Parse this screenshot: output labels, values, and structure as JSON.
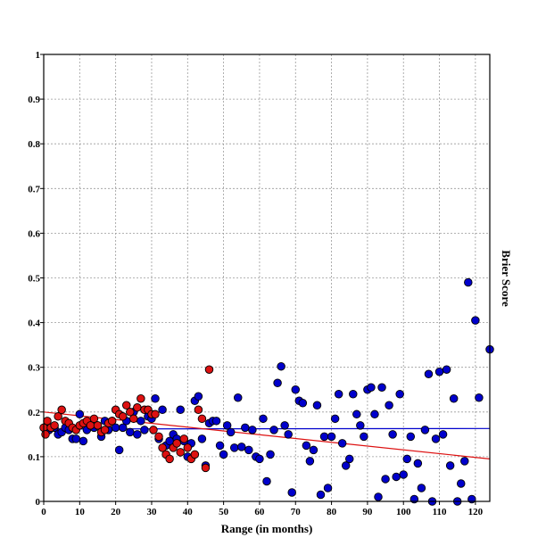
{
  "chart_data": {
    "type": "scatter",
    "title": "",
    "xlabel": "Range (in months)",
    "ylabel": "Brier Score",
    "xlim": [
      0,
      124
    ],
    "ylim": [
      0,
      1
    ],
    "x_ticks": [
      "0",
      "10",
      "20",
      "30",
      "40",
      "50",
      "60",
      "70",
      "80",
      "90",
      "100",
      "110",
      "120"
    ],
    "y_ticks": [
      "1",
      "0.9",
      "0.8",
      "0.7",
      "0.6",
      "0.5",
      "0.4",
      "0.3",
      "0.2",
      "0.1",
      "0"
    ],
    "grid": true,
    "series": [
      {
        "color": "#0000cc",
        "points": [
          [
            0.5,
            0.165
          ],
          [
            1.5,
            0.16
          ],
          [
            3,
            0.165
          ],
          [
            4,
            0.15
          ],
          [
            5,
            0.155
          ],
          [
            6,
            0.165
          ],
          [
            7,
            0.16
          ],
          [
            8,
            0.14
          ],
          [
            9,
            0.14
          ],
          [
            10,
            0.195
          ],
          [
            11,
            0.135
          ],
          [
            12,
            0.16
          ],
          [
            13,
            0.17
          ],
          [
            14,
            0.165
          ],
          [
            15,
            0.17
          ],
          [
            16,
            0.145
          ],
          [
            17,
            0.18
          ],
          [
            18,
            0.16
          ],
          [
            19,
            0.18
          ],
          [
            20,
            0.165
          ],
          [
            21,
            0.115
          ],
          [
            22,
            0.165
          ],
          [
            23,
            0.18
          ],
          [
            24,
            0.155
          ],
          [
            25,
            0.2
          ],
          [
            26,
            0.15
          ],
          [
            27,
            0.18
          ],
          [
            28,
            0.16
          ],
          [
            29,
            0.19
          ],
          [
            30,
            0.185
          ],
          [
            31,
            0.23
          ],
          [
            32,
            0.14
          ],
          [
            33,
            0.205
          ],
          [
            34,
            0.125
          ],
          [
            35,
            0.135
          ],
          [
            36,
            0.15
          ],
          [
            37,
            0.14
          ],
          [
            38,
            0.205
          ],
          [
            39,
            0.135
          ],
          [
            40,
            0.1
          ],
          [
            41,
            0.13
          ],
          [
            42,
            0.225
          ],
          [
            43,
            0.235
          ],
          [
            44,
            0.14
          ],
          [
            45,
            0.08
          ],
          [
            46,
            0.175
          ],
          [
            47,
            0.18
          ],
          [
            48,
            0.18
          ],
          [
            49,
            0.125
          ],
          [
            50,
            0.105
          ],
          [
            51,
            0.17
          ],
          [
            52,
            0.155
          ],
          [
            53,
            0.12
          ],
          [
            54,
            0.232
          ],
          [
            55,
            0.122
          ],
          [
            56,
            0.165
          ],
          [
            57,
            0.115
          ],
          [
            58,
            0.16
          ],
          [
            59,
            0.1
          ],
          [
            60,
            0.095
          ],
          [
            61,
            0.185
          ],
          [
            62,
            0.045
          ],
          [
            63,
            0.105
          ],
          [
            64,
            0.16
          ],
          [
            65,
            0.265
          ],
          [
            66,
            0.302
          ],
          [
            67,
            0.17
          ],
          [
            68,
            0.15
          ],
          [
            69,
            0.02
          ],
          [
            70,
            0.25
          ],
          [
            71,
            0.225
          ],
          [
            72,
            0.22
          ],
          [
            73,
            0.125
          ],
          [
            74,
            0.09
          ],
          [
            75,
            0.115
          ],
          [
            76,
            0.215
          ],
          [
            77,
            0.015
          ],
          [
            78,
            0.145
          ],
          [
            79,
            0.03
          ],
          [
            80,
            0.145
          ],
          [
            81,
            0.185
          ],
          [
            82,
            0.24
          ],
          [
            83,
            0.13
          ],
          [
            84,
            0.08
          ],
          [
            85,
            0.095
          ],
          [
            86,
            0.24
          ],
          [
            87,
            0.195
          ],
          [
            88,
            0.17
          ],
          [
            89,
            0.145
          ],
          [
            90,
            0.25
          ],
          [
            91,
            0.255
          ],
          [
            92,
            0.195
          ],
          [
            93,
            0.01
          ],
          [
            94,
            0.255
          ],
          [
            95,
            0.05
          ],
          [
            96,
            0.215
          ],
          [
            97,
            0.15
          ],
          [
            98,
            0.055
          ],
          [
            99,
            0.24
          ],
          [
            100,
            0.06
          ],
          [
            101,
            0.095
          ],
          [
            102,
            0.145
          ],
          [
            103,
            0.005
          ],
          [
            104,
            0.085
          ],
          [
            105,
            0.03
          ],
          [
            106,
            0.16
          ],
          [
            107,
            0.285
          ],
          [
            108,
            0.0
          ],
          [
            109,
            0.14
          ],
          [
            110,
            0.29
          ],
          [
            111,
            0.15
          ],
          [
            112,
            0.295
          ],
          [
            113,
            0.08
          ],
          [
            114,
            0.23
          ],
          [
            115,
            0.0
          ],
          [
            116,
            0.04
          ],
          [
            117,
            0.09
          ],
          [
            118,
            0.49
          ],
          [
            119,
            0.005
          ],
          [
            120,
            0.405
          ],
          [
            121,
            0.232
          ],
          [
            124,
            0.34
          ]
        ],
        "trend": [
          [
            0,
            0.162
          ],
          [
            124,
            0.163
          ]
        ]
      },
      {
        "color": "#dd1111",
        "points": [
          [
            0,
            0.165
          ],
          [
            0.5,
            0.15
          ],
          [
            1,
            0.18
          ],
          [
            2,
            0.165
          ],
          [
            3,
            0.17
          ],
          [
            4,
            0.19
          ],
          [
            5,
            0.205
          ],
          [
            6,
            0.18
          ],
          [
            7,
            0.175
          ],
          [
            8,
            0.165
          ],
          [
            9,
            0.16
          ],
          [
            10,
            0.17
          ],
          [
            11,
            0.175
          ],
          [
            12,
            0.18
          ],
          [
            13,
            0.17
          ],
          [
            14,
            0.185
          ],
          [
            15,
            0.17
          ],
          [
            16,
            0.155
          ],
          [
            17,
            0.16
          ],
          [
            18,
            0.175
          ],
          [
            19,
            0.18
          ],
          [
            20,
            0.205
          ],
          [
            21,
            0.195
          ],
          [
            22,
            0.19
          ],
          [
            23,
            0.215
          ],
          [
            24,
            0.2
          ],
          [
            25,
            0.185
          ],
          [
            26,
            0.21
          ],
          [
            27,
            0.23
          ],
          [
            28,
            0.205
          ],
          [
            29,
            0.205
          ],
          [
            30,
            0.195
          ],
          [
            30.5,
            0.16
          ],
          [
            31,
            0.195
          ],
          [
            32,
            0.145
          ],
          [
            33,
            0.12
          ],
          [
            34,
            0.105
          ],
          [
            35,
            0.095
          ],
          [
            36,
            0.12
          ],
          [
            37,
            0.13
          ],
          [
            38,
            0.11
          ],
          [
            39,
            0.14
          ],
          [
            40,
            0.12
          ],
          [
            41,
            0.095
          ],
          [
            42,
            0.105
          ],
          [
            43,
            0.205
          ],
          [
            44,
            0.185
          ],
          [
            45,
            0.075
          ],
          [
            46,
            0.295
          ]
        ],
        "trend": [
          [
            0,
            0.2
          ],
          [
            124,
            0.095
          ]
        ]
      }
    ]
  }
}
